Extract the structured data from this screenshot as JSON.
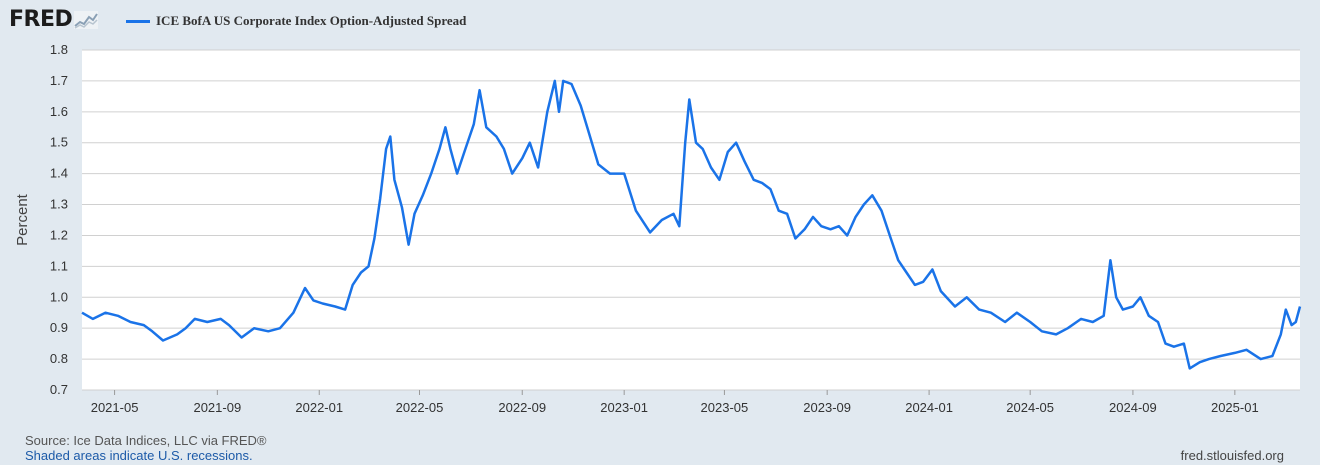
{
  "header": {
    "logo_text": "FRED",
    "series_title": "ICE BofA US Corporate Index Option-Adjusted Spread"
  },
  "footer": {
    "source": "Source: Ice Data Indices, LLC via FRED®",
    "recessions": "Shaded areas indicate U.S. recessions.",
    "url": "fred.stlouisfed.org"
  },
  "colors": {
    "line": "#1a73e8",
    "plot_bg": "#ffffff",
    "page_bg": "#e1e9f0",
    "grid": "#d0d0d0"
  },
  "chart_data": {
    "type": "line",
    "ylabel": "Percent",
    "ylim": [
      0.7,
      1.8
    ],
    "yticks": [
      0.7,
      0.8,
      0.9,
      1.0,
      1.1,
      1.2,
      1.3,
      1.4,
      1.5,
      1.6,
      1.7,
      1.8
    ],
    "ytick_labels": [
      "0.7",
      "0.8",
      "0.9",
      "1.0",
      "1.1",
      "1.2",
      "1.3",
      "1.4",
      "1.5",
      "1.6",
      "1.7",
      "1.8"
    ],
    "xlim": [
      "2021-03-23",
      "2025-03-20"
    ],
    "xticks": [
      "2021-05-01",
      "2021-09-01",
      "2022-01-01",
      "2022-05-01",
      "2022-09-01",
      "2023-01-01",
      "2023-05-01",
      "2023-09-01",
      "2024-01-01",
      "2024-05-01",
      "2024-09-01",
      "2025-01-01"
    ],
    "xtick_labels": [
      "2021-05",
      "2021-09",
      "2022-01",
      "2022-05",
      "2022-09",
      "2023-01",
      "2023-05",
      "2023-09",
      "2024-01",
      "2024-05",
      "2024-09",
      "2025-01"
    ],
    "grid": "horizontal",
    "series": [
      {
        "name": "ICE BofA US Corporate Index Option-Adjusted Spread",
        "points": [
          [
            "2021-03-23",
            0.95
          ],
          [
            "2021-04-05",
            0.93
          ],
          [
            "2021-04-20",
            0.95
          ],
          [
            "2021-05-05",
            0.94
          ],
          [
            "2021-05-20",
            0.92
          ],
          [
            "2021-06-05",
            0.91
          ],
          [
            "2021-06-15",
            0.89
          ],
          [
            "2021-06-28",
            0.86
          ],
          [
            "2021-07-15",
            0.88
          ],
          [
            "2021-07-25",
            0.9
          ],
          [
            "2021-08-05",
            0.93
          ],
          [
            "2021-08-20",
            0.92
          ],
          [
            "2021-09-05",
            0.93
          ],
          [
            "2021-09-15",
            0.91
          ],
          [
            "2021-09-30",
            0.87
          ],
          [
            "2021-10-15",
            0.9
          ],
          [
            "2021-11-01",
            0.89
          ],
          [
            "2021-11-15",
            0.9
          ],
          [
            "2021-12-01",
            0.95
          ],
          [
            "2021-12-15",
            1.03
          ],
          [
            "2021-12-25",
            0.99
          ],
          [
            "2022-01-05",
            0.98
          ],
          [
            "2022-01-20",
            0.97
          ],
          [
            "2022-02-01",
            0.96
          ],
          [
            "2022-02-10",
            1.04
          ],
          [
            "2022-02-20",
            1.08
          ],
          [
            "2022-03-01",
            1.1
          ],
          [
            "2022-03-08",
            1.19
          ],
          [
            "2022-03-15",
            1.32
          ],
          [
            "2022-03-22",
            1.48
          ],
          [
            "2022-03-27",
            1.52
          ],
          [
            "2022-04-01",
            1.38
          ],
          [
            "2022-04-10",
            1.29
          ],
          [
            "2022-04-18",
            1.17
          ],
          [
            "2022-04-25",
            1.27
          ],
          [
            "2022-05-05",
            1.33
          ],
          [
            "2022-05-15",
            1.4
          ],
          [
            "2022-05-25",
            1.48
          ],
          [
            "2022-06-01",
            1.55
          ],
          [
            "2022-06-07",
            1.48
          ],
          [
            "2022-06-15",
            1.4
          ],
          [
            "2022-06-25",
            1.48
          ],
          [
            "2022-07-05",
            1.56
          ],
          [
            "2022-07-12",
            1.67
          ],
          [
            "2022-07-20",
            1.55
          ],
          [
            "2022-08-01",
            1.52
          ],
          [
            "2022-08-10",
            1.48
          ],
          [
            "2022-08-20",
            1.4
          ],
          [
            "2022-09-01",
            1.45
          ],
          [
            "2022-09-10",
            1.5
          ],
          [
            "2022-09-20",
            1.42
          ],
          [
            "2022-10-01",
            1.6
          ],
          [
            "2022-10-10",
            1.7
          ],
          [
            "2022-10-15",
            1.6
          ],
          [
            "2022-10-20",
            1.7
          ],
          [
            "2022-10-30",
            1.69
          ],
          [
            "2022-11-10",
            1.62
          ],
          [
            "2022-11-20",
            1.53
          ],
          [
            "2022-12-01",
            1.43
          ],
          [
            "2022-12-15",
            1.4
          ],
          [
            "2023-01-01",
            1.4
          ],
          [
            "2023-01-15",
            1.28
          ],
          [
            "2023-02-01",
            1.21
          ],
          [
            "2023-02-15",
            1.25
          ],
          [
            "2023-03-01",
            1.27
          ],
          [
            "2023-03-08",
            1.23
          ],
          [
            "2023-03-15",
            1.5
          ],
          [
            "2023-03-20",
            1.64
          ],
          [
            "2023-03-28",
            1.5
          ],
          [
            "2023-04-05",
            1.48
          ],
          [
            "2023-04-15",
            1.42
          ],
          [
            "2023-04-25",
            1.38
          ],
          [
            "2023-05-05",
            1.47
          ],
          [
            "2023-05-15",
            1.5
          ],
          [
            "2023-05-25",
            1.44
          ],
          [
            "2023-06-05",
            1.38
          ],
          [
            "2023-06-15",
            1.37
          ],
          [
            "2023-06-25",
            1.35
          ],
          [
            "2023-07-05",
            1.28
          ],
          [
            "2023-07-15",
            1.27
          ],
          [
            "2023-07-25",
            1.19
          ],
          [
            "2023-08-05",
            1.22
          ],
          [
            "2023-08-15",
            1.26
          ],
          [
            "2023-08-25",
            1.23
          ],
          [
            "2023-09-05",
            1.22
          ],
          [
            "2023-09-15",
            1.23
          ],
          [
            "2023-09-25",
            1.2
          ],
          [
            "2023-10-05",
            1.26
          ],
          [
            "2023-10-15",
            1.3
          ],
          [
            "2023-10-25",
            1.33
          ],
          [
            "2023-11-05",
            1.28
          ],
          [
            "2023-11-15",
            1.2
          ],
          [
            "2023-11-25",
            1.12
          ],
          [
            "2023-12-05",
            1.08
          ],
          [
            "2023-12-15",
            1.04
          ],
          [
            "2023-12-25",
            1.05
          ],
          [
            "2024-01-05",
            1.09
          ],
          [
            "2024-01-15",
            1.02
          ],
          [
            "2024-02-01",
            0.97
          ],
          [
            "2024-02-15",
            1.0
          ],
          [
            "2024-03-01",
            0.96
          ],
          [
            "2024-03-15",
            0.95
          ],
          [
            "2024-04-01",
            0.92
          ],
          [
            "2024-04-15",
            0.95
          ],
          [
            "2024-05-01",
            0.92
          ],
          [
            "2024-05-15",
            0.89
          ],
          [
            "2024-06-01",
            0.88
          ],
          [
            "2024-06-15",
            0.9
          ],
          [
            "2024-07-01",
            0.93
          ],
          [
            "2024-07-15",
            0.92
          ],
          [
            "2024-07-28",
            0.94
          ],
          [
            "2024-08-05",
            1.12
          ],
          [
            "2024-08-12",
            1.0
          ],
          [
            "2024-08-20",
            0.96
          ],
          [
            "2024-09-01",
            0.97
          ],
          [
            "2024-09-10",
            1.0
          ],
          [
            "2024-09-20",
            0.94
          ],
          [
            "2024-10-01",
            0.92
          ],
          [
            "2024-10-10",
            0.85
          ],
          [
            "2024-10-20",
            0.84
          ],
          [
            "2024-11-01",
            0.85
          ],
          [
            "2024-11-08",
            0.77
          ],
          [
            "2024-11-20",
            0.79
          ],
          [
            "2024-12-01",
            0.8
          ],
          [
            "2024-12-15",
            0.81
          ],
          [
            "2025-01-01",
            0.82
          ],
          [
            "2025-01-15",
            0.83
          ],
          [
            "2025-02-01",
            0.8
          ],
          [
            "2025-02-15",
            0.81
          ],
          [
            "2025-02-25",
            0.88
          ],
          [
            "2025-03-03",
            0.96
          ],
          [
            "2025-03-10",
            0.91
          ],
          [
            "2025-03-15",
            0.92
          ],
          [
            "2025-03-20",
            0.97
          ]
        ]
      }
    ]
  }
}
